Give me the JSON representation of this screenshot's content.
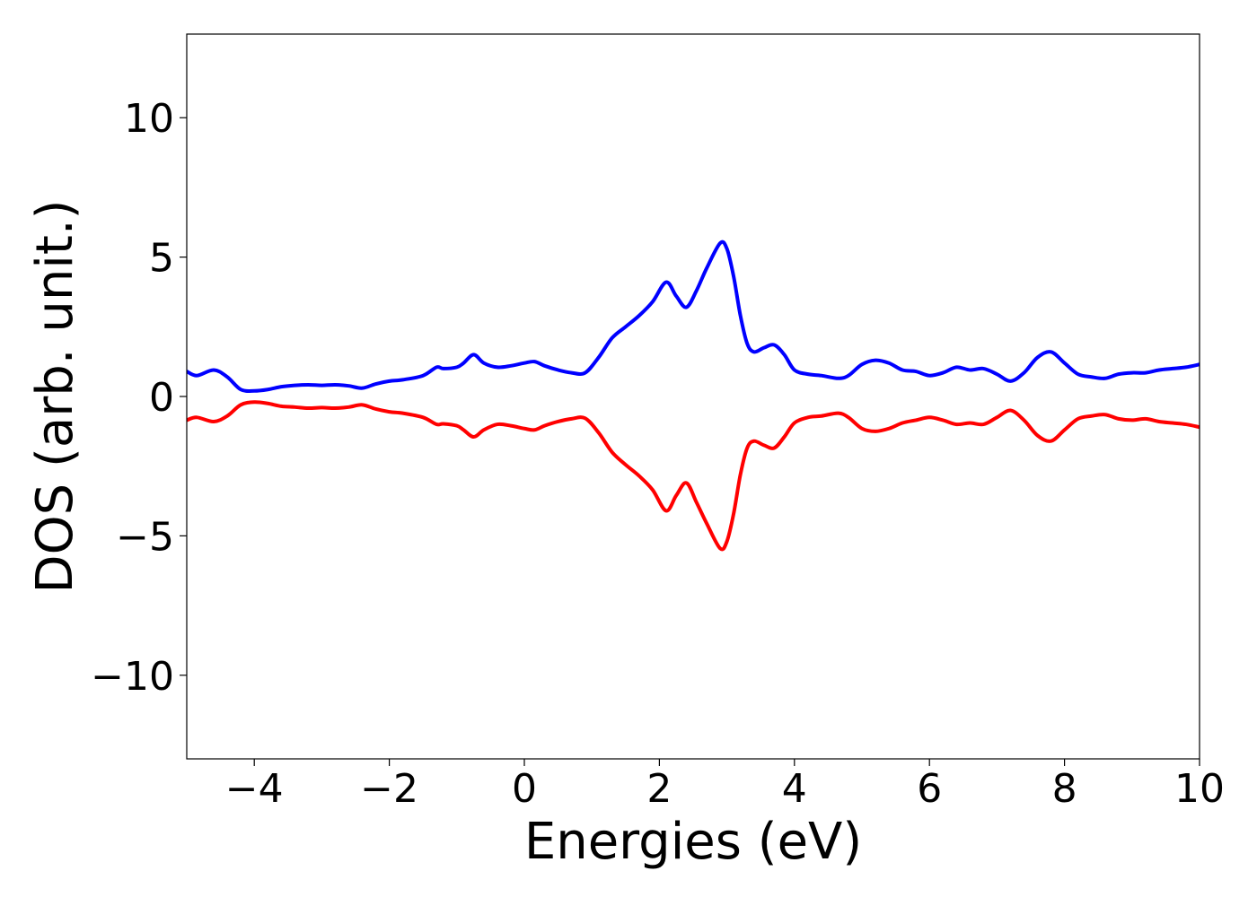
{
  "chart_data": {
    "type": "line",
    "title": "",
    "xlabel": "Energies (eV)",
    "ylabel": "DOS (arb. unit.)",
    "xlim": [
      -5,
      10
    ],
    "ylim": [
      -13,
      13
    ],
    "xticks": [
      -4,
      -2,
      0,
      2,
      4,
      6,
      8,
      10
    ],
    "xtick_labels": [
      "−4",
      "−2",
      "0",
      "2",
      "4",
      "6",
      "8",
      "10"
    ],
    "yticks": [
      10,
      5,
      0,
      -5,
      -10
    ],
    "ytick_labels": [
      "10",
      "5",
      "0",
      "−5",
      "−10"
    ],
    "grid": false,
    "legend": "none",
    "series": [
      {
        "color": "#0000ff",
        "x": [
          -5.0,
          -4.85,
          -4.6,
          -4.4,
          -4.2,
          -4.0,
          -3.8,
          -3.6,
          -3.4,
          -3.2,
          -3.0,
          -2.8,
          -2.6,
          -2.4,
          -2.2,
          -2.0,
          -1.8,
          -1.5,
          -1.3,
          -1.2,
          -1.0,
          -0.9,
          -0.75,
          -0.6,
          -0.4,
          -0.2,
          0.0,
          0.15,
          0.3,
          0.5,
          0.7,
          0.9,
          1.1,
          1.3,
          1.5,
          1.7,
          1.9,
          2.1,
          2.25,
          2.4,
          2.55,
          2.7,
          2.9,
          3.0,
          3.1,
          3.2,
          3.3,
          3.4,
          3.55,
          3.7,
          3.85,
          4.0,
          4.2,
          4.4,
          4.65,
          4.8,
          5.0,
          5.2,
          5.4,
          5.6,
          5.8,
          6.0,
          6.2,
          6.4,
          6.6,
          6.8,
          7.0,
          7.2,
          7.4,
          7.6,
          7.8,
          8.0,
          8.2,
          8.4,
          8.6,
          8.8,
          9.0,
          9.2,
          9.4,
          9.6,
          9.8,
          10.0
        ],
        "y": [
          0.9,
          0.75,
          0.95,
          0.7,
          0.25,
          0.2,
          0.25,
          0.35,
          0.4,
          0.42,
          0.4,
          0.42,
          0.38,
          0.3,
          0.45,
          0.55,
          0.6,
          0.75,
          1.05,
          1.0,
          1.05,
          1.2,
          1.5,
          1.2,
          1.05,
          1.1,
          1.2,
          1.25,
          1.1,
          0.95,
          0.85,
          0.85,
          1.4,
          2.1,
          2.5,
          2.9,
          3.4,
          4.1,
          3.6,
          3.2,
          3.8,
          4.6,
          5.5,
          5.3,
          4.3,
          2.9,
          1.9,
          1.6,
          1.75,
          1.85,
          1.5,
          0.95,
          0.8,
          0.75,
          0.65,
          0.75,
          1.15,
          1.3,
          1.2,
          0.95,
          0.9,
          0.75,
          0.85,
          1.05,
          0.95,
          1.0,
          0.8,
          0.55,
          0.85,
          1.4,
          1.6,
          1.2,
          0.8,
          0.7,
          0.65,
          0.8,
          0.85,
          0.85,
          0.95,
          1.0,
          1.05,
          1.15
        ]
      },
      {
        "color": "#ff0000",
        "x": [
          -5.0,
          -4.85,
          -4.6,
          -4.4,
          -4.2,
          -4.0,
          -3.8,
          -3.6,
          -3.4,
          -3.2,
          -3.0,
          -2.8,
          -2.6,
          -2.4,
          -2.2,
          -2.0,
          -1.8,
          -1.5,
          -1.3,
          -1.2,
          -1.0,
          -0.9,
          -0.75,
          -0.6,
          -0.4,
          -0.2,
          0.0,
          0.15,
          0.3,
          0.5,
          0.7,
          0.9,
          1.1,
          1.3,
          1.5,
          1.7,
          1.9,
          2.1,
          2.25,
          2.4,
          2.55,
          2.7,
          2.9,
          3.0,
          3.1,
          3.2,
          3.3,
          3.4,
          3.55,
          3.7,
          3.85,
          4.0,
          4.2,
          4.4,
          4.65,
          4.8,
          5.0,
          5.2,
          5.4,
          5.6,
          5.8,
          6.0,
          6.2,
          6.4,
          6.6,
          6.8,
          7.0,
          7.2,
          7.4,
          7.6,
          7.8,
          8.0,
          8.2,
          8.4,
          8.6,
          8.8,
          9.0,
          9.2,
          9.4,
          9.6,
          9.8,
          10.0
        ],
        "y": [
          -0.85,
          -0.75,
          -0.9,
          -0.7,
          -0.3,
          -0.2,
          -0.25,
          -0.35,
          -0.38,
          -0.42,
          -0.4,
          -0.42,
          -0.38,
          -0.3,
          -0.45,
          -0.55,
          -0.6,
          -0.75,
          -1.0,
          -0.98,
          -1.05,
          -1.2,
          -1.45,
          -1.2,
          -1.0,
          -1.05,
          -1.15,
          -1.2,
          -1.05,
          -0.9,
          -0.8,
          -0.78,
          -1.3,
          -2.0,
          -2.45,
          -2.85,
          -3.35,
          -4.1,
          -3.55,
          -3.1,
          -3.8,
          -4.55,
          -5.45,
          -5.2,
          -4.2,
          -2.8,
          -1.85,
          -1.6,
          -1.75,
          -1.85,
          -1.45,
          -0.95,
          -0.75,
          -0.7,
          -0.6,
          -0.75,
          -1.15,
          -1.25,
          -1.15,
          -0.95,
          -0.85,
          -0.75,
          -0.85,
          -1.0,
          -0.95,
          -1.0,
          -0.75,
          -0.5,
          -0.85,
          -1.4,
          -1.6,
          -1.2,
          -0.8,
          -0.7,
          -0.65,
          -0.8,
          -0.85,
          -0.8,
          -0.9,
          -0.95,
          -1.0,
          -1.1
        ]
      }
    ]
  }
}
